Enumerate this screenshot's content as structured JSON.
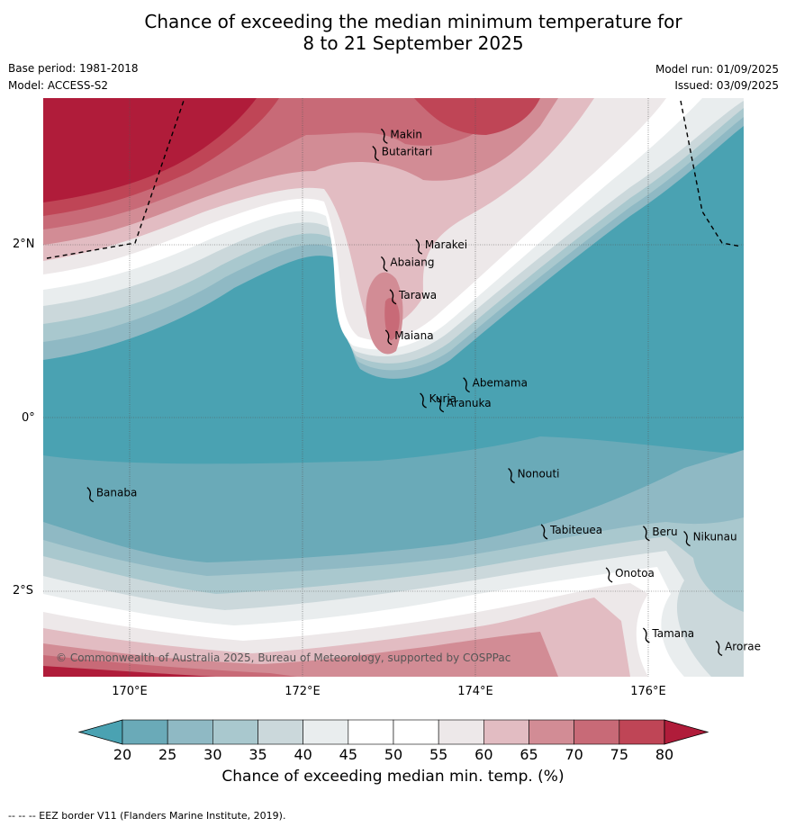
{
  "title_line1": "Chance of exceeding the median minimum temperature for",
  "title_line2": "8 to 21 September 2025",
  "meta": {
    "base_period": "Base period: 1981-2018",
    "model": "Model: ACCESS-S2",
    "model_run": "Model run: 01/09/2025",
    "issued": "Issued: 03/09/2025"
  },
  "copyright": "© Commonwealth of Australia 2025, Bureau of Meteorology, supported by COSPPac",
  "colorbar_label": "Chance of exceeding median min. temp. (%)",
  "footnote": "-- -- -- EEZ border V11 (Flanders Marine Institute, 2019).",
  "map": {
    "lon_ticks": [
      {
        "lon": 170,
        "label": "170°E"
      },
      {
        "lon": 172,
        "label": "172°E"
      },
      {
        "lon": 174,
        "label": "174°E"
      },
      {
        "lon": 176,
        "label": "176°E"
      }
    ],
    "lat_ticks": [
      {
        "lat": 2,
        "label": "2°N"
      },
      {
        "lat": 0,
        "label": "0°"
      },
      {
        "lat": -2,
        "label": "2°S"
      }
    ],
    "extent": {
      "lon": [
        169,
        177.1
      ],
      "lat": [
        -3.0,
        3.7
      ]
    },
    "islands": [
      {
        "name": "Makin",
        "lon": 172.95,
        "lat": 3.28
      },
      {
        "name": "Butaritari",
        "lon": 172.85,
        "lat": 3.08
      },
      {
        "name": "Marakei",
        "lon": 173.35,
        "lat": 2.0
      },
      {
        "name": "Abaiang",
        "lon": 172.95,
        "lat": 1.8
      },
      {
        "name": "Tarawa",
        "lon": 173.05,
        "lat": 1.42
      },
      {
        "name": "Maiana",
        "lon": 173.0,
        "lat": 0.95
      },
      {
        "name": "Abemama",
        "lon": 173.9,
        "lat": 0.4
      },
      {
        "name": "Kuria",
        "lon": 173.4,
        "lat": 0.22
      },
      {
        "name": "Aranuka",
        "lon": 173.6,
        "lat": 0.17
      },
      {
        "name": "Banaba",
        "lon": 169.55,
        "lat": -0.87
      },
      {
        "name": "Nonouti",
        "lon": 174.42,
        "lat": -0.65
      },
      {
        "name": "Tabiteuea",
        "lon": 174.8,
        "lat": -1.3
      },
      {
        "name": "Beru",
        "lon": 175.98,
        "lat": -1.32
      },
      {
        "name": "Nikunau",
        "lon": 176.45,
        "lat": -1.38
      },
      {
        "name": "Onotoa",
        "lon": 175.55,
        "lat": -1.8
      },
      {
        "name": "Tamana",
        "lon": 175.98,
        "lat": -2.5
      },
      {
        "name": "Arorae",
        "lon": 176.82,
        "lat": -2.65
      }
    ]
  },
  "colorbar": {
    "ticks": [
      "20",
      "25",
      "30",
      "35",
      "40",
      "45",
      "50",
      "55",
      "60",
      "65",
      "70",
      "75",
      "80"
    ],
    "colors": [
      "#6aaab8",
      "#8fb9c4",
      "#a9c8ce",
      "#cbd8db",
      "#e9edee",
      "#ffffff",
      "#ffffff",
      "#ede8e9",
      "#e2bcc2",
      "#d28c95",
      "#c86a77",
      "#bf4556"
    ],
    "low_color": "#4aa2b2",
    "high_color": "#b01c3a"
  }
}
